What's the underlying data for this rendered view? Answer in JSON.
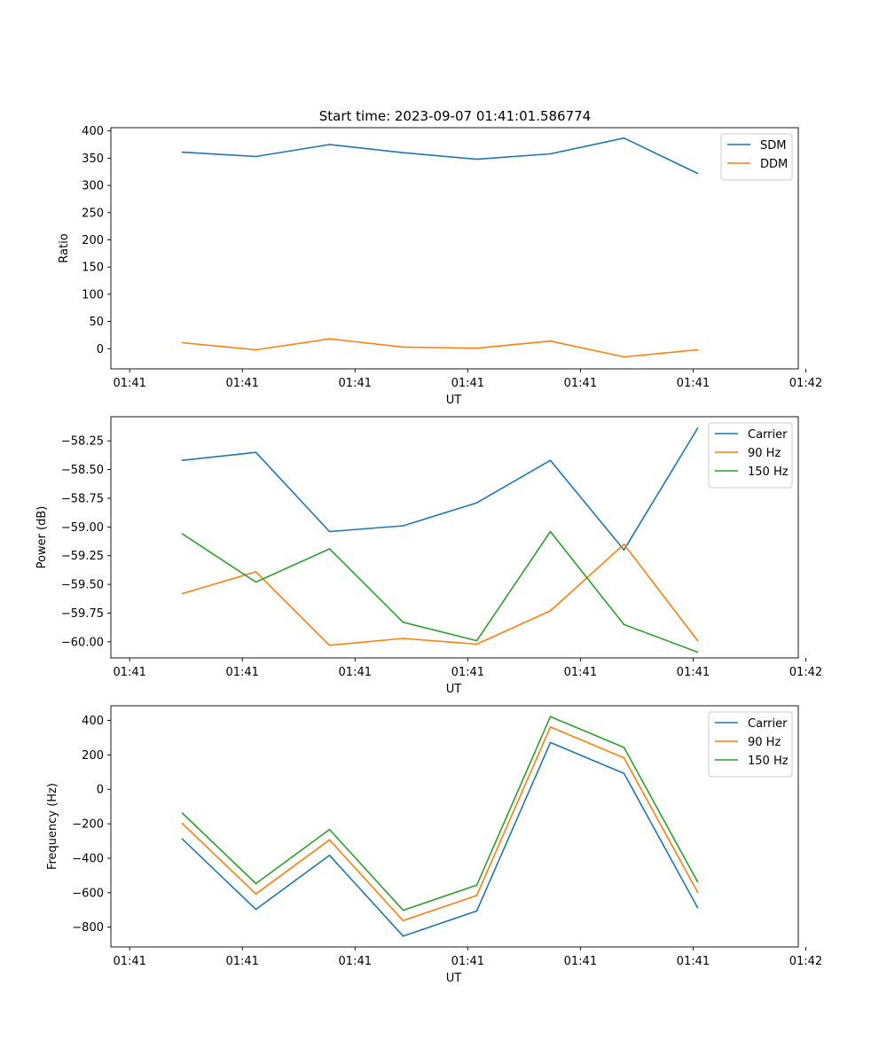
{
  "figure_title": "Start time: 2023-09-07 01:41:01.586774",
  "colors": {
    "c0": "#1f77b4",
    "c1": "#ff7f0e",
    "c2": "#2ca02c"
  },
  "chart_data": [
    {
      "type": "line",
      "xlabel": "UT",
      "ylabel": "Ratio",
      "ylim": [
        -37,
        406
      ],
      "xlim": [
        -0.25,
        8.9
      ],
      "x_ticks": [
        0,
        1.5,
        3,
        4.5,
        6,
        7.5,
        9
      ],
      "x_tick_labels": [
        "01:41",
        "01:41",
        "01:41",
        "01:41",
        "01:41",
        "01:41",
        "01:42"
      ],
      "y_ticks": [
        0,
        50,
        100,
        150,
        200,
        250,
        300,
        350,
        400
      ],
      "y_tick_labels": [
        "0",
        "50",
        "100",
        "150",
        "200",
        "250",
        "300",
        "350",
        "400"
      ],
      "legend": "top-right",
      "x": [
        0.7,
        1.68,
        2.66,
        3.64,
        4.62,
        5.6,
        6.58,
        7.56
      ],
      "series": [
        {
          "name": "SDM",
          "color_key": "c0",
          "values": [
            361,
            353,
            375,
            360,
            348,
            358,
            387,
            322
          ]
        },
        {
          "name": "DDM",
          "color_key": "c1",
          "values": [
            11,
            -2,
            18,
            3,
            1,
            14,
            -15,
            -2
          ]
        }
      ]
    },
    {
      "type": "line",
      "xlabel": "UT",
      "ylabel": "Power (dB)",
      "ylim": [
        -60.14,
        -58.04
      ],
      "xlim": [
        -0.25,
        8.9
      ],
      "x_ticks": [
        0,
        1.5,
        3,
        4.5,
        6,
        7.5,
        9
      ],
      "x_tick_labels": [
        "01:41",
        "01:41",
        "01:41",
        "01:41",
        "01:41",
        "01:41",
        "01:42"
      ],
      "y_ticks": [
        -60.0,
        -59.75,
        -59.5,
        -59.25,
        -59.0,
        -58.75,
        -58.5,
        -58.25
      ],
      "y_tick_labels": [
        "−60.00",
        "−59.75",
        "−59.50",
        "−59.25",
        "−59.00",
        "−58.75",
        "−58.50",
        "−58.25"
      ],
      "legend": "top-right",
      "x": [
        0.7,
        1.68,
        2.66,
        3.64,
        4.62,
        5.6,
        6.58,
        7.56
      ],
      "series": [
        {
          "name": "Carrier",
          "color_key": "c0",
          "values": [
            -58.42,
            -58.35,
            -59.04,
            -58.99,
            -58.79,
            -58.42,
            -59.2,
            -58.14
          ]
        },
        {
          "name": "90 Hz",
          "color_key": "c1",
          "values": [
            -59.58,
            -59.39,
            -60.03,
            -59.97,
            -60.02,
            -59.73,
            -59.15,
            -59.99
          ]
        },
        {
          "name": "150 Hz",
          "color_key": "c2",
          "values": [
            -59.06,
            -59.48,
            -59.19,
            -59.83,
            -59.99,
            -59.04,
            -59.85,
            -60.09
          ]
        }
      ]
    },
    {
      "type": "line",
      "xlabel": "UT",
      "ylabel": "Frequency (Hz)",
      "ylim": [
        -915,
        485
      ],
      "xlim": [
        -0.25,
        8.9
      ],
      "x_ticks": [
        0,
        1.5,
        3,
        4.5,
        6,
        7.5,
        9
      ],
      "x_tick_labels": [
        "01:41",
        "01:41",
        "01:41",
        "01:41",
        "01:41",
        "01:41",
        "01:42"
      ],
      "y_ticks": [
        -800,
        -600,
        -400,
        -200,
        0,
        200,
        400
      ],
      "y_tick_labels": [
        "−800",
        "−600",
        "−400",
        "−200",
        "0",
        "200",
        "400"
      ],
      "legend": "top-right",
      "x": [
        0.7,
        1.68,
        2.66,
        3.64,
        4.62,
        5.6,
        6.58,
        7.56
      ],
      "series": [
        {
          "name": "Carrier",
          "color_key": "c0",
          "values": [
            -288,
            -697,
            -383,
            -852,
            -706,
            272,
            93,
            -687
          ]
        },
        {
          "name": "90 Hz",
          "color_key": "c1",
          "values": [
            -198,
            -607,
            -293,
            -762,
            -616,
            362,
            183,
            -597
          ]
        },
        {
          "name": "150 Hz",
          "color_key": "c2",
          "values": [
            -138,
            -547,
            -233,
            -702,
            -556,
            422,
            243,
            -537
          ]
        }
      ]
    }
  ]
}
